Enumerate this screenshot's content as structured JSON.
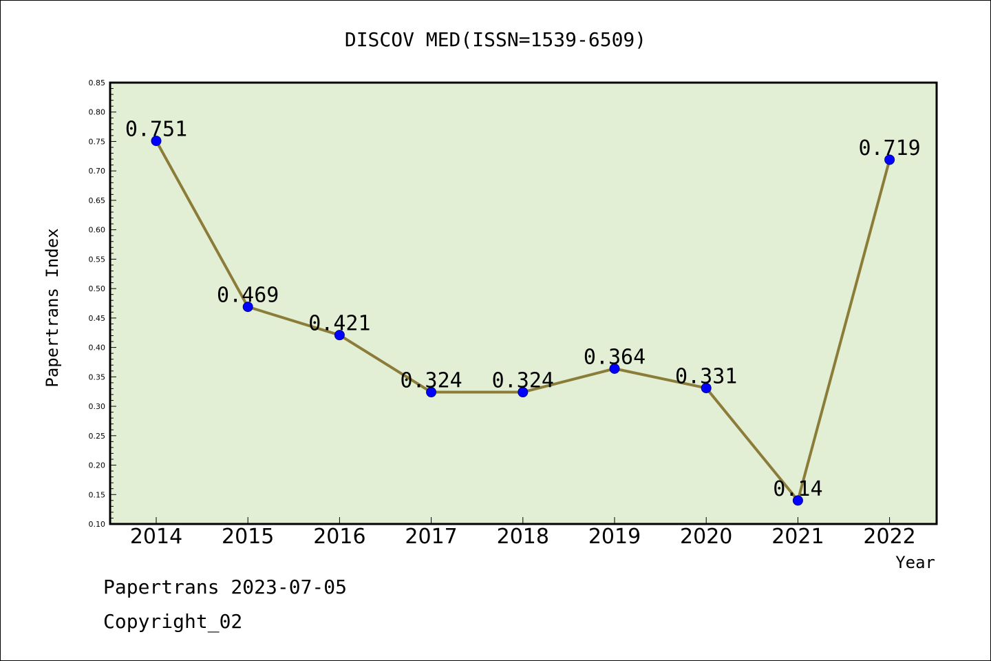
{
  "chart_data": {
    "type": "line",
    "title": "DISCOV MED(ISSN=1539-6509)",
    "xlabel": "Year",
    "ylabel": "Papertrans Index",
    "categories": [
      "2014",
      "2015",
      "2016",
      "2017",
      "2018",
      "2019",
      "2020",
      "2021",
      "2022"
    ],
    "series": [
      {
        "values": [
          0.751,
          0.469,
          0.421,
          0.324,
          0.324,
          0.364,
          0.331,
          0.14,
          0.719
        ]
      }
    ],
    "data_labels": [
      "0.751",
      "0.469",
      "0.421",
      "0.324",
      "0.324",
      "0.364",
      "0.331",
      "0.14",
      "0.719"
    ],
    "ylim": [
      0.1,
      0.85
    ],
    "yticks": [
      "0.10",
      "0.15",
      "0.20",
      "0.25",
      "0.30",
      "0.35",
      "0.40",
      "0.45",
      "0.50",
      "0.55",
      "0.60",
      "0.65",
      "0.70",
      "0.75",
      "0.80",
      "0.85"
    ],
    "grid": false,
    "colors": {
      "plot_background": "#e2efd5",
      "line": "#8b7d39",
      "marker": "#0000ff"
    }
  },
  "footer": {
    "line1": "Papertrans 2023-07-05",
    "line2": "Copyright_02"
  }
}
